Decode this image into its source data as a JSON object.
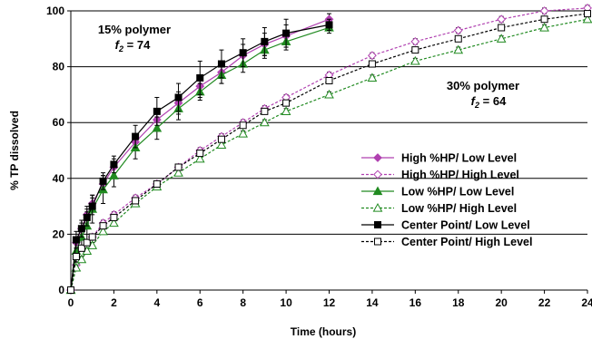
{
  "chart_data": {
    "type": "line",
    "xlabel": "Time (hours)",
    "ylabel": "% TP dissolved",
    "xlim": [
      0,
      24
    ],
    "ylim": [
      0,
      100
    ],
    "xticks": [
      0,
      2,
      4,
      6,
      8,
      10,
      12,
      14,
      16,
      18,
      20,
      22,
      24
    ],
    "yticks": [
      0,
      20,
      40,
      60,
      80,
      100
    ],
    "grid": "horizontal",
    "legend_position": "bottom-right",
    "annotations": [
      {
        "line1": "15% polymer",
        "f_symbol": "f",
        "f_sub": "2",
        "f_value": " = 74"
      },
      {
        "line1": "30% polymer",
        "f_symbol": "f",
        "f_sub": "2",
        "f_value": " = 64"
      }
    ],
    "series": [
      {
        "name": "High %HP/ Low Level",
        "color": "#b040b0",
        "marker": "diamond",
        "filled": true,
        "dashed": false,
        "x": [
          0,
          0.25,
          0.5,
          0.75,
          1,
          1.5,
          2,
          3,
          4,
          5,
          6,
          7,
          8,
          9,
          10,
          12
        ],
        "y": [
          0,
          17,
          22,
          27,
          31,
          38,
          44,
          53,
          61,
          67,
          73,
          78,
          84,
          88,
          91,
          97
        ],
        "err": [
          0,
          2,
          3,
          3,
          3,
          3,
          3,
          3,
          4,
          4,
          4,
          4,
          4,
          4,
          4,
          2
        ]
      },
      {
        "name": "High %HP/ High Level",
        "color": "#b040b0",
        "marker": "diamond",
        "filled": false,
        "dashed": true,
        "x": [
          0,
          0.25,
          0.5,
          0.75,
          1,
          1.5,
          2,
          3,
          4,
          5,
          6,
          7,
          8,
          9,
          10,
          12,
          14,
          16,
          18,
          20,
          22,
          24
        ],
        "y": [
          0,
          9,
          13,
          16,
          19,
          24,
          27,
          33,
          38,
          44,
          50,
          55,
          60,
          65,
          69,
          77,
          84,
          89,
          93,
          97,
          100,
          101
        ],
        "err": [
          0,
          1,
          1,
          1,
          1,
          1,
          1,
          1,
          1,
          1,
          1,
          1,
          1,
          1,
          1,
          1,
          1,
          1,
          1,
          1,
          1,
          1
        ]
      },
      {
        "name": "Low %HP/ Low Level",
        "color": "#208a20",
        "marker": "triangle",
        "filled": true,
        "dashed": false,
        "x": [
          0,
          0.25,
          0.5,
          0.75,
          1,
          1.5,
          2,
          3,
          4,
          5,
          6,
          7,
          8,
          9,
          10,
          12
        ],
        "y": [
          0,
          14,
          19,
          23,
          29,
          36,
          41,
          51,
          58,
          65,
          71,
          77,
          81,
          86,
          89,
          94
        ],
        "err": [
          0,
          4,
          5,
          5,
          5,
          5,
          4,
          4,
          4,
          4,
          3,
          3,
          3,
          3,
          3,
          2
        ]
      },
      {
        "name": "Low %HP/ High Level",
        "color": "#208a20",
        "marker": "triangle",
        "filled": false,
        "dashed": true,
        "x": [
          0,
          0.25,
          0.5,
          0.75,
          1,
          1.5,
          2,
          3,
          4,
          5,
          6,
          7,
          8,
          9,
          10,
          12,
          14,
          16,
          18,
          20,
          22,
          24
        ],
        "y": [
          0,
          8,
          11,
          14,
          16,
          21,
          24,
          31,
          37,
          42,
          47,
          52,
          56,
          60,
          64,
          70,
          76,
          82,
          86,
          90,
          94,
          97
        ],
        "err": [
          0,
          1,
          1,
          1,
          1,
          1,
          1,
          1,
          1,
          1,
          1,
          1,
          1,
          1,
          1,
          1,
          1,
          1,
          1,
          1,
          1,
          1
        ]
      },
      {
        "name": "Center Point/ Low Level",
        "color": "#000000",
        "marker": "square",
        "filled": true,
        "dashed": false,
        "x": [
          0,
          0.25,
          0.5,
          0.75,
          1,
          1.5,
          2,
          3,
          4,
          5,
          6,
          7,
          8,
          9,
          10,
          12
        ],
        "y": [
          0,
          18,
          22,
          26,
          30,
          39,
          45,
          55,
          64,
          69,
          76,
          81,
          85,
          89,
          92,
          95
        ],
        "err": [
          0,
          3,
          3,
          3,
          3,
          3,
          3,
          4,
          5,
          5,
          6,
          5,
          5,
          5,
          5,
          2
        ]
      },
      {
        "name": "Center Point/ High Level",
        "color": "#000000",
        "marker": "square",
        "filled": false,
        "dashed": true,
        "x": [
          0,
          0.25,
          0.5,
          0.75,
          1,
          1.5,
          2,
          3,
          4,
          5,
          6,
          7,
          8,
          9,
          10,
          12,
          14,
          16,
          18,
          20,
          22,
          24
        ],
        "y": [
          0,
          12,
          15,
          17,
          19,
          23,
          26,
          32,
          38,
          44,
          49,
          54,
          59,
          64,
          67,
          75,
          81,
          86,
          90,
          94,
          97,
          99
        ],
        "err": [
          0,
          1,
          1,
          1,
          1,
          1,
          1,
          1,
          1,
          1,
          1,
          1,
          1,
          1,
          1,
          1,
          1,
          1,
          1,
          1,
          1,
          1
        ]
      }
    ]
  }
}
